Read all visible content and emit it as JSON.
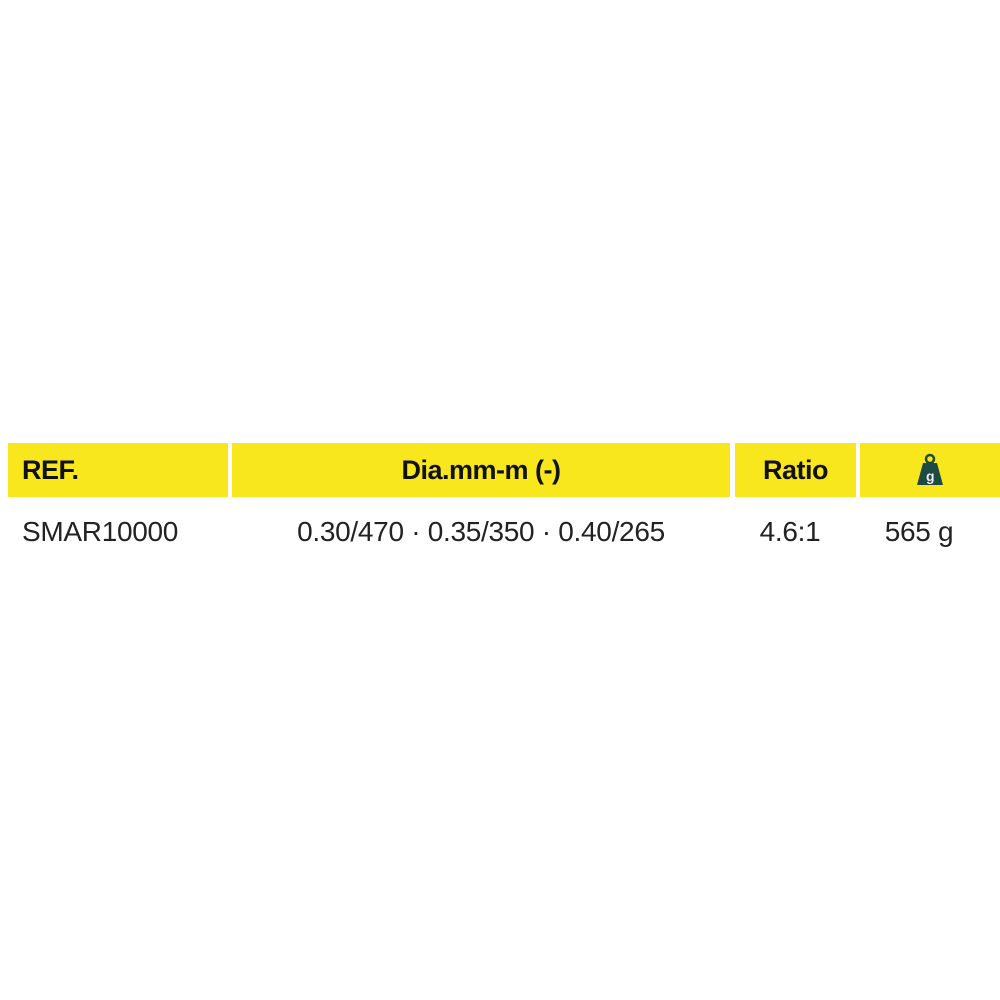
{
  "table": {
    "headers": [
      "REF.",
      "Dia.mm-m (-)",
      "Ratio"
    ],
    "weight_icon": "weight-icon",
    "weight_icon_letter": "g",
    "header_color": "#f8e71c",
    "rows": [
      {
        "ref": "SMAR10000",
        "dia": "0.30/470 · 0.35/350 · 0.40/265",
        "ratio": "4.6:1",
        "weight": "565 g"
      }
    ]
  }
}
